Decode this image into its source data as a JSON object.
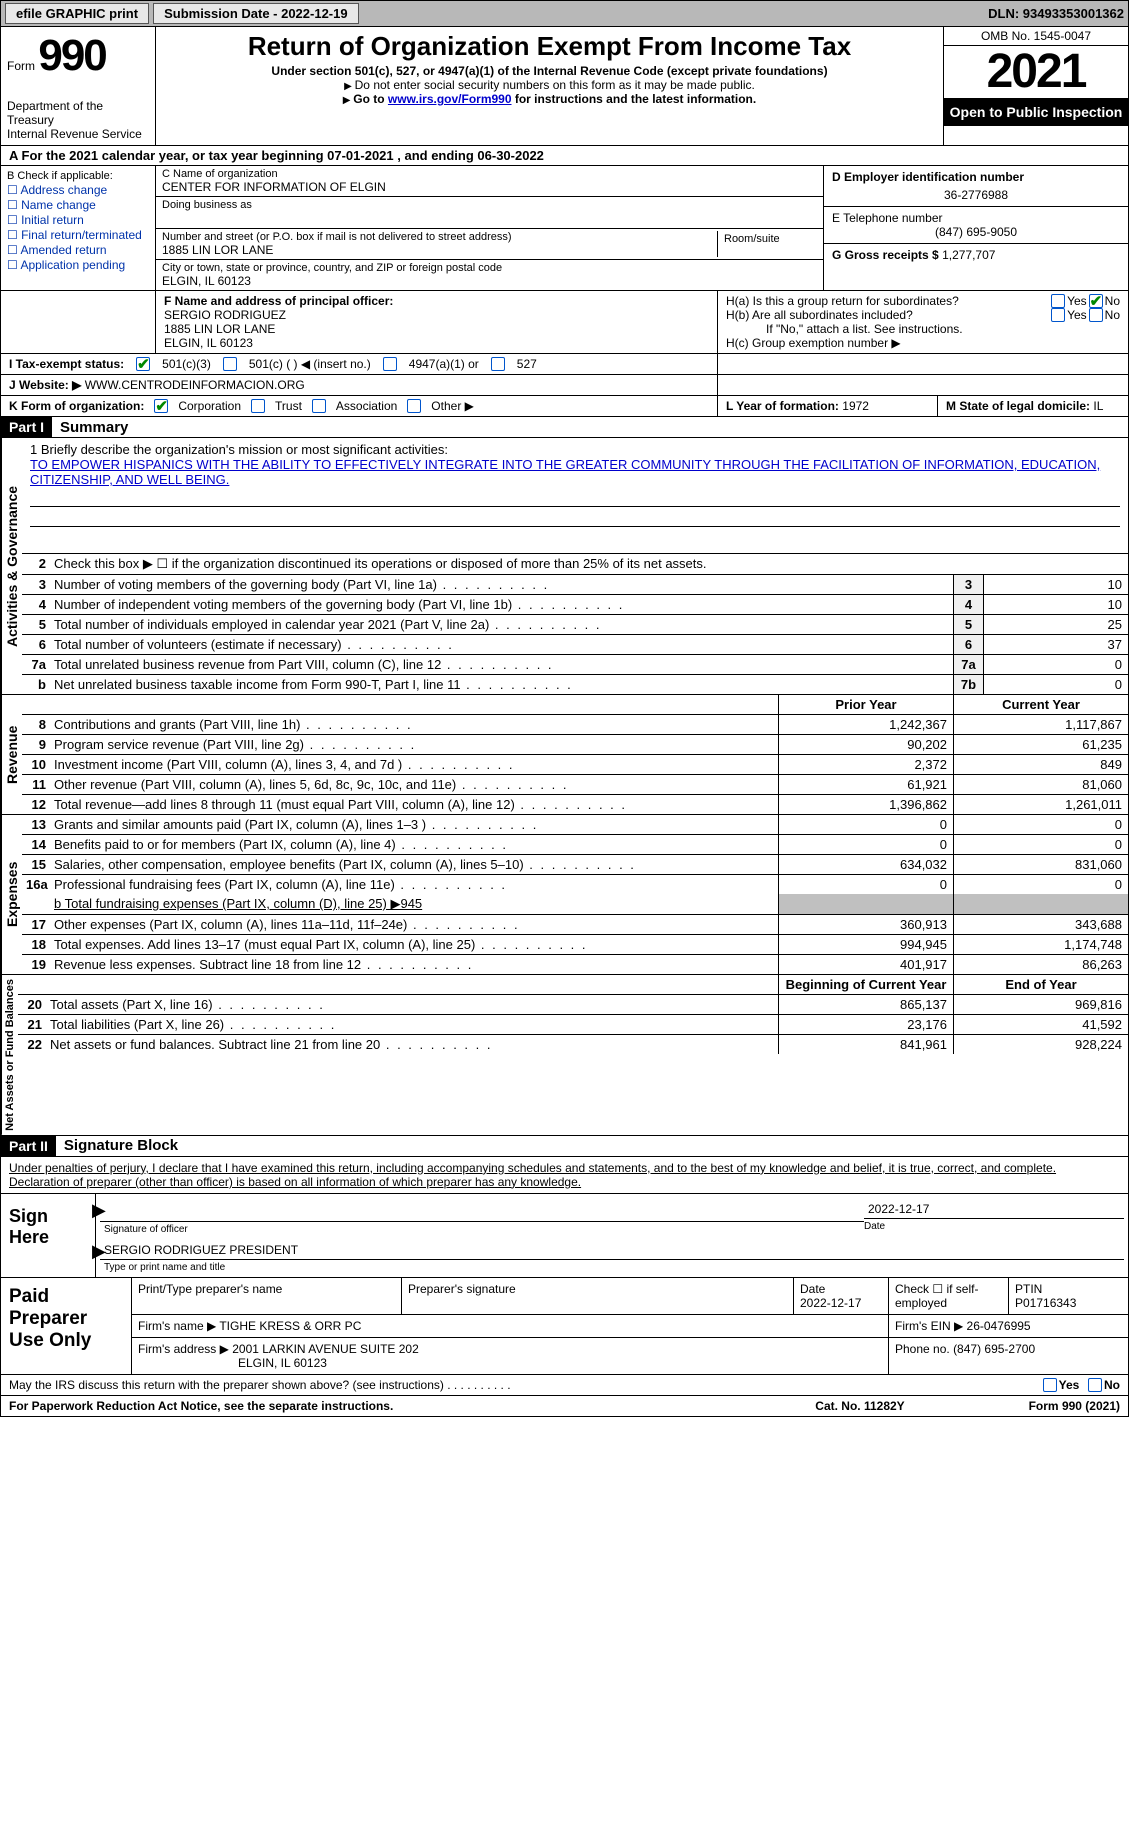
{
  "topbar": {
    "efile": "efile GRAPHIC print",
    "submission": "Submission Date - 2022-12-19",
    "dln": "DLN: 93493353001362"
  },
  "header": {
    "form_label": "Form",
    "form_num": "990",
    "dept": "Department of the Treasury\nInternal Revenue Service",
    "title": "Return of Organization Exempt From Income Tax",
    "subtitle": "Under section 501(c), 527, or 4947(a)(1) of the Internal Revenue Code (except private foundations)",
    "note1": "Do not enter social security numbers on this form as it may be made public.",
    "note2_a": "Go to ",
    "note2_link": "www.irs.gov/Form990",
    "note2_b": " for instructions and the latest information.",
    "omb": "OMB No. 1545-0047",
    "year": "2021",
    "open": "Open to Public Inspection"
  },
  "row_a": "A  For the 2021 calendar year, or tax year beginning 07-01-2021    , and ending 06-30-2022",
  "box_b": {
    "label": "B Check if applicable:",
    "items": [
      "Address change",
      "Name change",
      "Initial return",
      "Final return/terminated",
      "Amended return",
      "Application pending"
    ]
  },
  "box_c": {
    "name_label": "C Name of organization",
    "name": "CENTER FOR INFORMATION OF ELGIN",
    "dba_label": "Doing business as",
    "addr_label": "Number and street (or P.O. box if mail is not delivered to street address)",
    "addr": "1885 LIN LOR LANE",
    "room_label": "Room/suite",
    "city_label": "City or town, state or province, country, and ZIP or foreign postal code",
    "city": "ELGIN, IL  60123"
  },
  "box_d": {
    "label": "D Employer identification number",
    "val": "36-2776988"
  },
  "box_e": {
    "label": "E Telephone number",
    "val": "(847) 695-9050"
  },
  "box_g": {
    "label": "G Gross receipts $",
    "val": "1,277,707"
  },
  "box_f": {
    "label": "F  Name and address of principal officer:",
    "name": "SERGIO RODRIGUEZ",
    "addr1": "1885 LIN LOR LANE",
    "addr2": "ELGIN, IL  60123"
  },
  "box_h": {
    "ha": "H(a)  Is this a group return for subordinates?",
    "hb": "H(b)  Are all subordinates included?",
    "hb_note": "If \"No,\" attach a list. See instructions.",
    "hc": "H(c)  Group exemption number ▶",
    "yes": "Yes",
    "no": "No"
  },
  "row_i": {
    "label": "I   Tax-exempt status:",
    "c3": "501(c)(3)",
    "c": "501(c) (  ) ◀ (insert no.)",
    "a1": "4947(a)(1) or",
    "s527": "527"
  },
  "row_j": {
    "label": "J   Website: ▶",
    "val": "WWW.CENTRODEINFORMACION.ORG"
  },
  "row_k": {
    "label": "K Form of organization:",
    "corp": "Corporation",
    "trust": "Trust",
    "assoc": "Association",
    "other": "Other ▶"
  },
  "row_l": {
    "label": "L Year of formation:",
    "val": "1972"
  },
  "row_m": {
    "label": "M State of legal domicile:",
    "val": "IL"
  },
  "part1": {
    "header": "Part I",
    "title": "Summary",
    "line1_label": "1   Briefly describe the organization's mission or most significant activities:",
    "line1_text": "TO EMPOWER HISPANICS WITH THE ABILITY TO EFFECTIVELY INTEGRATE INTO THE GREATER COMMUNITY THROUGH THE FACILITATION OF INFORMATION, EDUCATION, CITIZENSHIP, AND WELL BEING.",
    "line2": "Check this box ▶ ☐  if the organization discontinued its operations or disposed of more than 25% of its net assets.",
    "lines_ag": [
      {
        "n": "3",
        "t": "Number of voting members of the governing body (Part VI, line 1a)",
        "b": "3",
        "v": "10"
      },
      {
        "n": "4",
        "t": "Number of independent voting members of the governing body (Part VI, line 1b)",
        "b": "4",
        "v": "10"
      },
      {
        "n": "5",
        "t": "Total number of individuals employed in calendar year 2021 (Part V, line 2a)",
        "b": "5",
        "v": "25"
      },
      {
        "n": "6",
        "t": "Total number of volunteers (estimate if necessary)",
        "b": "6",
        "v": "37"
      },
      {
        "n": "7a",
        "t": "Total unrelated business revenue from Part VIII, column (C), line 12",
        "b": "7a",
        "v": "0"
      },
      {
        "n": "b",
        "t": "Net unrelated business taxable income from Form 990-T, Part I, line 11",
        "b": "7b",
        "v": "0"
      }
    ],
    "col_prior": "Prior Year",
    "col_current": "Current Year",
    "lines_rev": [
      {
        "n": "8",
        "t": "Contributions and grants (Part VIII, line 1h)",
        "p": "1,242,367",
        "c": "1,117,867"
      },
      {
        "n": "9",
        "t": "Program service revenue (Part VIII, line 2g)",
        "p": "90,202",
        "c": "61,235"
      },
      {
        "n": "10",
        "t": "Investment income (Part VIII, column (A), lines 3, 4, and 7d )",
        "p": "2,372",
        "c": "849"
      },
      {
        "n": "11",
        "t": "Other revenue (Part VIII, column (A), lines 5, 6d, 8c, 9c, 10c, and 11e)",
        "p": "61,921",
        "c": "81,060"
      },
      {
        "n": "12",
        "t": "Total revenue—add lines 8 through 11 (must equal Part VIII, column (A), line 12)",
        "p": "1,396,862",
        "c": "1,261,011"
      }
    ],
    "lines_exp": [
      {
        "n": "13",
        "t": "Grants and similar amounts paid (Part IX, column (A), lines 1–3 )",
        "p": "0",
        "c": "0"
      },
      {
        "n": "14",
        "t": "Benefits paid to or for members (Part IX, column (A), line 4)",
        "p": "0",
        "c": "0"
      },
      {
        "n": "15",
        "t": "Salaries, other compensation, employee benefits (Part IX, column (A), lines 5–10)",
        "p": "634,032",
        "c": "831,060"
      },
      {
        "n": "16a",
        "t": "Professional fundraising fees (Part IX, column (A), line 11e)",
        "p": "0",
        "c": "0"
      }
    ],
    "line16b": "b   Total fundraising expenses (Part IX, column (D), line 25) ▶945",
    "lines_exp2": [
      {
        "n": "17",
        "t": "Other expenses (Part IX, column (A), lines 11a–11d, 11f–24e)",
        "p": "360,913",
        "c": "343,688"
      },
      {
        "n": "18",
        "t": "Total expenses. Add lines 13–17 (must equal Part IX, column (A), line 25)",
        "p": "994,945",
        "c": "1,174,748"
      },
      {
        "n": "19",
        "t": "Revenue less expenses. Subtract line 18 from line 12",
        "p": "401,917",
        "c": "86,263"
      }
    ],
    "col_begin": "Beginning of Current Year",
    "col_end": "End of Year",
    "lines_na": [
      {
        "n": "20",
        "t": "Total assets (Part X, line 16)",
        "p": "865,137",
        "c": "969,816"
      },
      {
        "n": "21",
        "t": "Total liabilities (Part X, line 26)",
        "p": "23,176",
        "c": "41,592"
      },
      {
        "n": "22",
        "t": "Net assets or fund balances. Subtract line 21 from line 20",
        "p": "841,961",
        "c": "928,224"
      }
    ],
    "vert_ag": "Activities & Governance",
    "vert_rev": "Revenue",
    "vert_exp": "Expenses",
    "vert_na": "Net Assets or Fund Balances"
  },
  "part2": {
    "header": "Part II",
    "title": "Signature Block",
    "declaration": "Under penalties of perjury, I declare that I have examined this return, including accompanying schedules and statements, and to the best of my knowledge and belief, it is true, correct, and complete. Declaration of preparer (other than officer) is based on all information of which preparer has any knowledge.",
    "sign_here": "Sign Here",
    "sig_officer": "Signature of officer",
    "sig_date": "2022-12-17",
    "sig_date_label": "Date",
    "sig_name": "SERGIO RODRIGUEZ  PRESIDENT",
    "sig_name_label": "Type or print name and title",
    "ppu": "Paid Preparer Use Only",
    "prep_name_label": "Print/Type preparer's name",
    "prep_sig_label": "Preparer's signature",
    "prep_date_label": "Date",
    "prep_date": "2022-12-17",
    "prep_check": "Check ☐ if self-employed",
    "ptin_label": "PTIN",
    "ptin": "P01716343",
    "firm_name_label": "Firm's name    ▶",
    "firm_name": "TIGHE KRESS & ORR PC",
    "firm_ein_label": "Firm's EIN ▶",
    "firm_ein": "26-0476995",
    "firm_addr_label": "Firm's address ▶",
    "firm_addr1": "2001 LARKIN AVENUE SUITE 202",
    "firm_addr2": "ELGIN, IL  60123",
    "phone_label": "Phone no.",
    "phone": "(847) 695-2700",
    "discuss": "May the IRS discuss this return with the preparer shown above? (see instructions)"
  },
  "footer": {
    "paperwork": "For Paperwork Reduction Act Notice, see the separate instructions.",
    "cat": "Cat. No. 11282Y",
    "form": "Form 990 (2021)"
  },
  "colors": {
    "link": "#0000cc",
    "check_border": "#0055cc",
    "check_mark": "#008800",
    "shaded": "#c0c0c0",
    "topbar_bg": "#b8b8b8"
  }
}
